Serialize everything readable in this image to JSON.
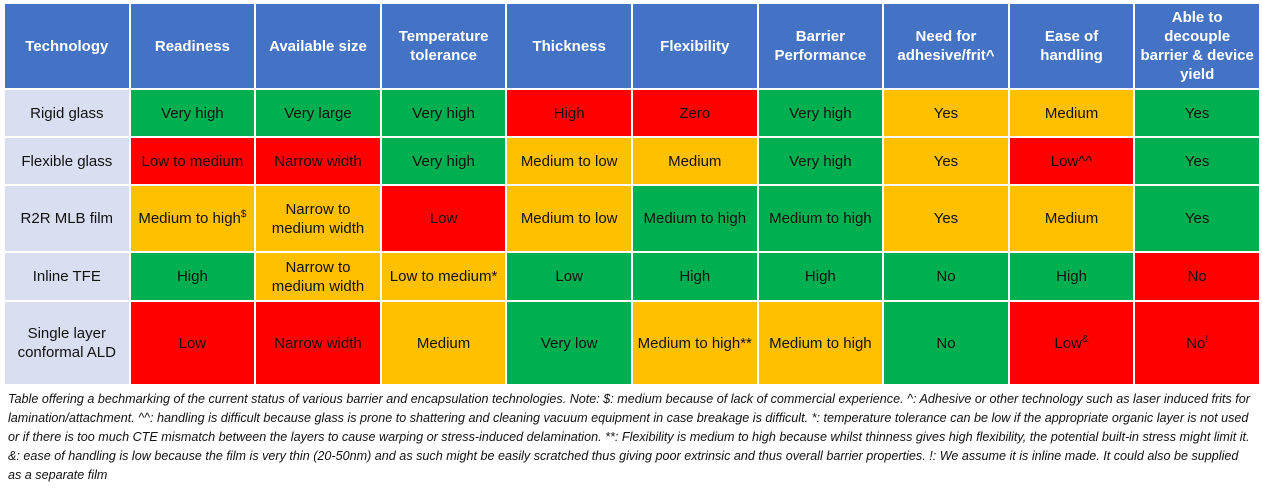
{
  "table": {
    "columns": [
      "Technology",
      "Readiness",
      "Available size",
      "Temperature tolerance",
      "Thickness",
      "Flexibility",
      "Barrier Performance",
      "Need for adhesive/frit^",
      "Ease of handling",
      "Able to decouple barrier & device yield"
    ],
    "header_color": "#4472c4",
    "label_color": "#d9dff0",
    "rows": [
      {
        "label": "Rigid glass",
        "cells": [
          {
            "text": "Very high",
            "color": "#00b050"
          },
          {
            "text": "Very large",
            "color": "#00b050"
          },
          {
            "text": "Very high",
            "color": "#00b050"
          },
          {
            "text": "High",
            "color": "#ff0000"
          },
          {
            "text": "Zero",
            "color": "#ff0000"
          },
          {
            "text": "Very high",
            "color": "#00b050"
          },
          {
            "text": "Yes",
            "color": "#ffc000"
          },
          {
            "text": "Medium",
            "color": "#ffc000"
          },
          {
            "text": "Yes",
            "color": "#00b050"
          }
        ]
      },
      {
        "label": "Flexible glass",
        "cells": [
          {
            "text": "Low to medium",
            "color": "#ff0000"
          },
          {
            "text": "Narrow width",
            "color": "#ff0000"
          },
          {
            "text": "Very high",
            "color": "#00b050"
          },
          {
            "text": "Medium to low",
            "color": "#ffc000"
          },
          {
            "text": "Medium",
            "color": "#ffc000"
          },
          {
            "text": "Very high",
            "color": "#00b050"
          },
          {
            "text": "Yes",
            "color": "#ffc000"
          },
          {
            "text": "Low^^",
            "color": "#ff0000"
          },
          {
            "text": "Yes",
            "color": "#00b050"
          }
        ]
      },
      {
        "label": "R2R MLB film",
        "cells": [
          {
            "text": "Medium to high",
            "sup": "$",
            "color": "#ffc000"
          },
          {
            "text": "Narrow to medium width",
            "color": "#ffc000"
          },
          {
            "text": "Low",
            "color": "#ff0000"
          },
          {
            "text": "Medium to low",
            "color": "#ffc000"
          },
          {
            "text": "Medium to high",
            "color": "#00b050"
          },
          {
            "text": "Medium to high",
            "color": "#00b050"
          },
          {
            "text": "Yes",
            "color": "#ffc000"
          },
          {
            "text": "Medium",
            "color": "#ffc000"
          },
          {
            "text": "Yes",
            "color": "#00b050"
          }
        ]
      },
      {
        "label": "Inline TFE",
        "cells": [
          {
            "text": "High",
            "color": "#00b050"
          },
          {
            "text": "Narrow to medium width",
            "color": "#ffc000"
          },
          {
            "text": "Low to medium*",
            "color": "#ffc000"
          },
          {
            "text": "Low",
            "color": "#00b050"
          },
          {
            "text": "High",
            "color": "#00b050"
          },
          {
            "text": "High",
            "color": "#00b050"
          },
          {
            "text": "No",
            "color": "#00b050"
          },
          {
            "text": "High",
            "color": "#00b050"
          },
          {
            "text": "No",
            "color": "#ff0000"
          }
        ]
      },
      {
        "label": "Single layer conformal ALD",
        "cells": [
          {
            "text": "Low",
            "color": "#ff0000"
          },
          {
            "text": "Narrow width",
            "color": "#ff0000"
          },
          {
            "text": "Medium",
            "color": "#ffc000"
          },
          {
            "text": "Very low",
            "color": "#00b050"
          },
          {
            "text": "Medium to high**",
            "color": "#ffc000"
          },
          {
            "text": "Medium to high",
            "color": "#ffc000"
          },
          {
            "text": "No",
            "color": "#00b050"
          },
          {
            "text": "Low",
            "sup": "&",
            "color": "#ff0000"
          },
          {
            "text": "No",
            "sup": "!",
            "color": "#ff0000"
          }
        ]
      }
    ]
  },
  "caption": "Table offering a bechmarking of the current status of various barrier and encapsulation technologies. Note: $: medium because of lack of commercial experience. ^: Adhesive or other technology such as laser induced frits for lamination/attachment. ^^: handling is difficult because glass is prone to shattering and cleaning vacuum equipment in case breakage is difficult.  *: temperature tolerance can be low if the appropriate organic layer is not used or if there is too much CTE mismatch between the layers to cause warping or stress-induced delamination.  **: Flexibility is medium to high because whilst thinness gives high flexibility, the potential built-in stress might limit it. &:  ease of handling is low because the film is very thin (20-50nm) and as such might be easily scratched thus giving poor extrinsic and thus overall barrier properties. !:  We assume it is inline made. It could also be supplied as a separate film"
}
